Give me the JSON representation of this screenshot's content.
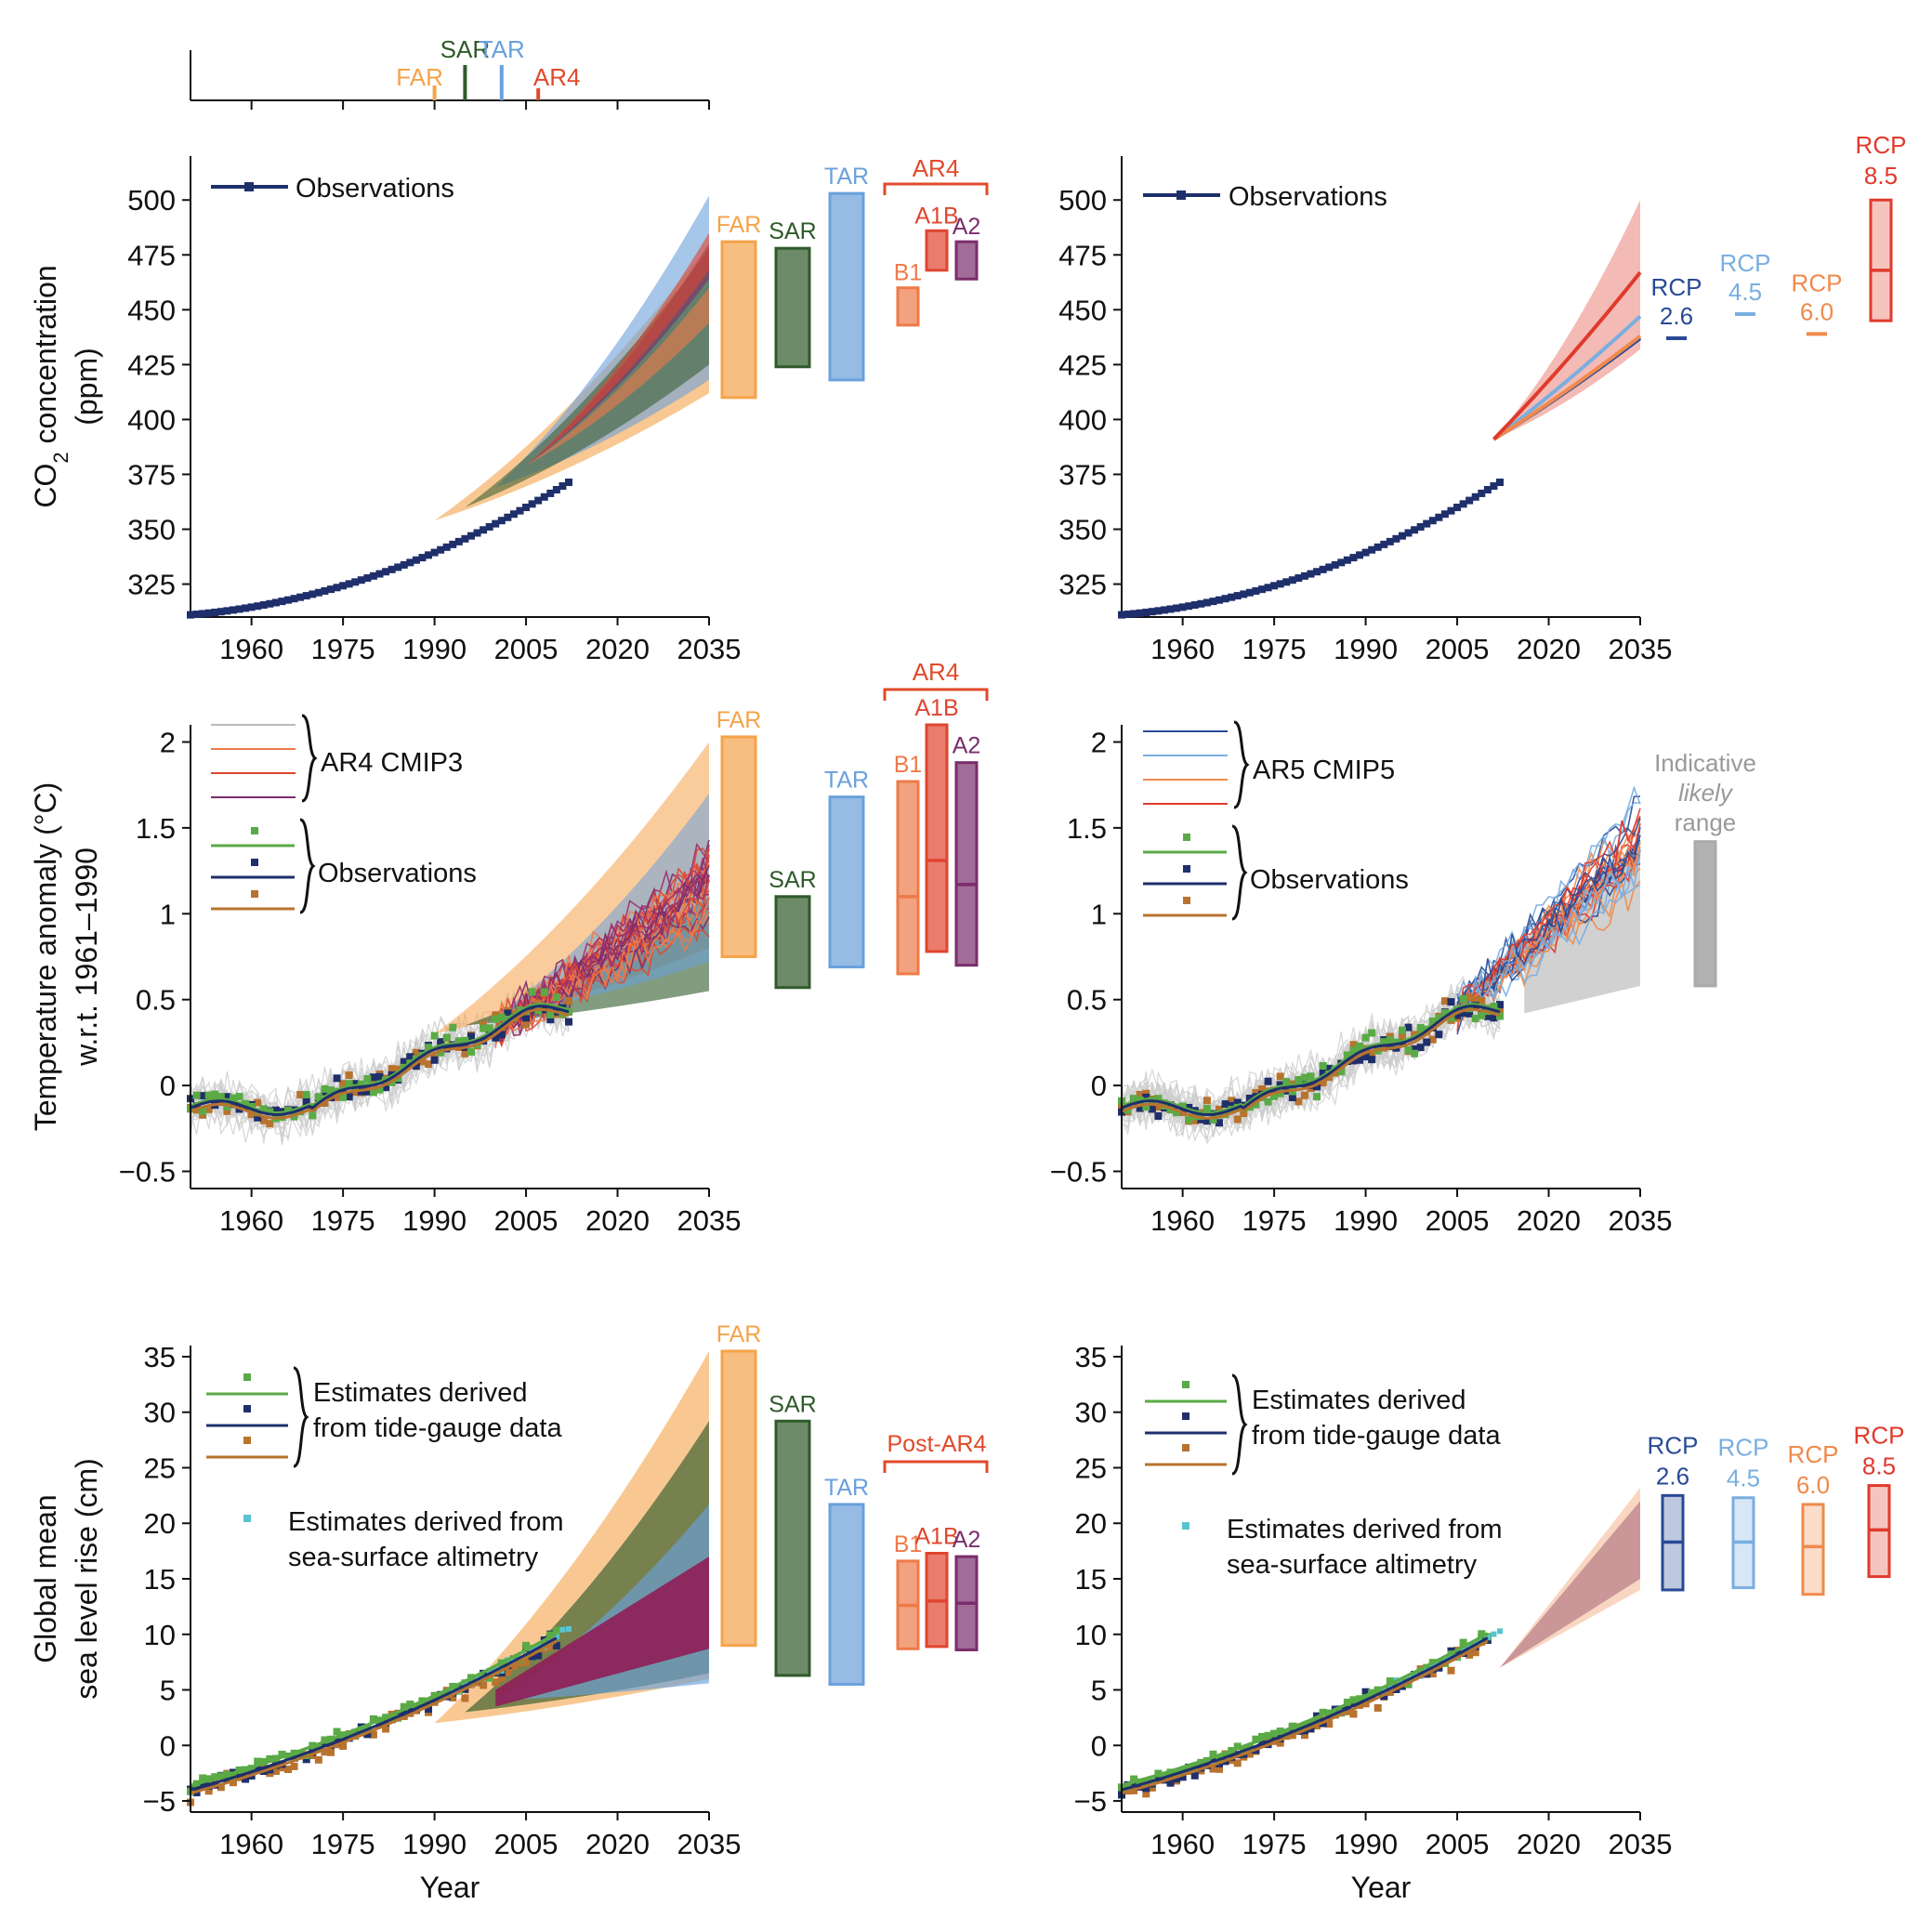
{
  "colors": {
    "obs_navy": "#1f2f6b",
    "obs_green": "#5aaa46",
    "obs_brown": "#b8732e",
    "altimetry": "#58c4d0",
    "FAR": "#f5a34a",
    "SAR": "#2f5a2a",
    "TAR": "#6aa0dc",
    "AR4": "#e04a2a",
    "B1": "#ee7a48",
    "A1B": "#e0452f",
    "A2": "#7a2d6c",
    "RCP26": "#284a96",
    "RCP45": "#79aee0",
    "RCP60": "#ef8a4c",
    "RCP85": "#e03a2c",
    "cmip_grey": "#cccccc",
    "likely_grey": "#aaaaaa"
  },
  "timeline": {
    "labels": [
      "FAR",
      "SAR",
      "TAR",
      "AR4"
    ],
    "years": [
      1990,
      1995,
      2001,
      2007
    ]
  },
  "left_brackets": {
    "co2": "AR4",
    "temp": "AR4",
    "sea": "Post-AR4"
  },
  "legend": {
    "observations": "Observations",
    "ar4_cmip3": "AR4 CMIP3",
    "ar5_cmip5": "AR5 CMIP5",
    "tide_line1": "Estimates derived",
    "tide_line2": "from tide-gauge data",
    "alt_line1": "Estimates derived from",
    "alt_line2": "sea-surface altimetry"
  },
  "indicative": {
    "line1": "Indicative",
    "line2": "likely",
    "line3": "range"
  },
  "chart_data": [
    {
      "id": "co2_ar",
      "type": "line",
      "ylabel_line1": "CO",
      "ylabel_sub": "2",
      "ylabel_rest": " concentration",
      "ylabel_line2": "(ppm)",
      "xlabel": "",
      "xlim": [
        1950,
        2035
      ],
      "ylim": [
        310,
        520
      ],
      "xticks": [
        1960,
        1975,
        1990,
        2005,
        2020,
        2035
      ],
      "yticks": [
        325,
        350,
        375,
        400,
        425,
        450,
        475,
        500
      ],
      "observations": {
        "start": 1950,
        "end": 2012
      },
      "projection_fans": [
        {
          "name": "FAR",
          "start_year": 1990,
          "start_value": 354,
          "end_low": 412,
          "end_high": 480
        },
        {
          "name": "TAR",
          "start_year": 2000,
          "start_value": 369,
          "end_low": 418,
          "end_high": 502
        },
        {
          "name": "SAR",
          "start_year": 1995,
          "start_value": 360,
          "end_low": 425,
          "end_high": 478
        },
        {
          "name": "A2",
          "start_year": 2005,
          "start_value": 379,
          "end_low": 464,
          "end_high": 480
        },
        {
          "name": "A1B",
          "start_year": 2005,
          "start_value": 379,
          "end_low": 468,
          "end_high": 485
        },
        {
          "name": "B1",
          "start_year": 2005,
          "start_value": 379,
          "end_low": 444,
          "end_high": 460
        }
      ],
      "range_bars": [
        {
          "name": "FAR",
          "low": 410,
          "high": 481
        },
        {
          "name": "SAR",
          "low": 424,
          "high": 478
        },
        {
          "name": "TAR",
          "low": 418,
          "high": 503
        },
        {
          "name": "B1",
          "low": 443,
          "high": 460
        },
        {
          "name": "A1B",
          "low": 468,
          "high": 486
        },
        {
          "name": "A2",
          "low": 464,
          "high": 481
        }
      ]
    },
    {
      "id": "co2_rcp",
      "type": "line",
      "xlim": [
        1950,
        2035
      ],
      "ylim": [
        310,
        520
      ],
      "xticks": [
        1960,
        1975,
        1990,
        2005,
        2020,
        2035
      ],
      "yticks": [
        325,
        350,
        375,
        400,
        425,
        450,
        475,
        500
      ],
      "observations": {
        "start": 1950,
        "end": 2012
      },
      "rcp_lines": [
        {
          "name": "RCP 2.6",
          "end": 437
        },
        {
          "name": "RCP 4.5",
          "end": 447
        },
        {
          "name": "RCP 6.0",
          "end": 438
        },
        {
          "name": "RCP 8.5",
          "end": 467
        }
      ],
      "range_bars": [
        {
          "label1": "RCP",
          "label2": "2.6",
          "mid": 437
        },
        {
          "label1": "RCP",
          "label2": "4.5",
          "mid": 448
        },
        {
          "label1": "RCP",
          "label2": "6.0",
          "mid": 439
        },
        {
          "label1": "RCP",
          "label2": "8.5",
          "low": 445,
          "high": 500,
          "mid": 468
        }
      ]
    },
    {
      "id": "temp_ar",
      "type": "line",
      "ylabel_line1": "Temperature anomaly (°C)",
      "ylabel_line2": "w.r.t. 1961–1990",
      "xlim": [
        1950,
        2035
      ],
      "ylim": [
        -0.6,
        2.1
      ],
      "xticks": [
        1960,
        1975,
        1990,
        2005,
        2020,
        2035
      ],
      "yticks": [
        -0.5,
        0,
        0.5,
        1,
        1.5,
        2
      ],
      "ytick_labels": [
        "−0.5",
        "0",
        "0.5",
        "1",
        "1.5",
        "2"
      ],
      "range_bars": [
        {
          "name": "FAR",
          "low": 0.75,
          "high": 2.03
        },
        {
          "name": "SAR",
          "low": 0.57,
          "high": 1.1
        },
        {
          "name": "TAR",
          "low": 0.69,
          "high": 1.68
        },
        {
          "name": "B1",
          "low": 0.65,
          "high": 1.77,
          "mid": 1.1
        },
        {
          "name": "A1B",
          "low": 0.78,
          "high": 2.1,
          "mid": 1.31
        },
        {
          "name": "A2",
          "low": 0.7,
          "high": 1.88,
          "mid": 1.17
        }
      ]
    },
    {
      "id": "temp_rcp",
      "type": "line",
      "xlim": [
        1950,
        2035
      ],
      "ylim": [
        -0.6,
        2.1
      ],
      "xticks": [
        1960,
        1975,
        1990,
        2005,
        2020,
        2035
      ],
      "yticks": [
        -0.5,
        0,
        0.5,
        1,
        1.5,
        2
      ],
      "ytick_labels": [
        "−0.5",
        "0",
        "0.5",
        "1",
        "1.5",
        "2"
      ],
      "range_bars": [
        {
          "name": "Indicative likely range",
          "low": 0.58,
          "high": 1.42
        }
      ]
    },
    {
      "id": "sea_ar",
      "type": "line",
      "ylabel_line1": "Global mean",
      "ylabel_line2": "sea level rise (cm)",
      "xlabel": "Year",
      "xlim": [
        1950,
        2035
      ],
      "ylim": [
        -6,
        36
      ],
      "xticks": [
        1960,
        1975,
        1990,
        2005,
        2020,
        2035
      ],
      "yticks": [
        -5,
        0,
        5,
        10,
        15,
        20,
        25,
        30,
        35
      ],
      "ytick_labels": [
        "−5",
        "0",
        "5",
        "10",
        "15",
        "20",
        "25",
        "30",
        "35"
      ],
      "range_bars": [
        {
          "name": "FAR",
          "low": 9,
          "high": 35.5
        },
        {
          "name": "SAR",
          "low": 6.3,
          "high": 29.2
        },
        {
          "name": "TAR",
          "low": 5.5,
          "high": 21.7
        },
        {
          "name": "B1",
          "low": 8.7,
          "high": 16.6,
          "mid": 12.6
        },
        {
          "name": "A1B",
          "low": 8.9,
          "high": 17.3,
          "mid": 13
        },
        {
          "name": "A2",
          "low": 8.6,
          "high": 17,
          "mid": 12.8
        }
      ]
    },
    {
      "id": "sea_rcp",
      "type": "line",
      "xlabel": "Year",
      "xlim": [
        1950,
        2035
      ],
      "ylim": [
        -6,
        36
      ],
      "xticks": [
        1960,
        1975,
        1990,
        2005,
        2020,
        2035
      ],
      "yticks": [
        -5,
        0,
        5,
        10,
        15,
        20,
        25,
        30,
        35
      ],
      "ytick_labels": [
        "−5",
        "0",
        "5",
        "10",
        "15",
        "20",
        "25",
        "30",
        "35"
      ],
      "range_bars": [
        {
          "label1": "RCP",
          "label2": "2.6",
          "low": 14,
          "high": 22.5,
          "mid": 18.3
        },
        {
          "label1": "RCP",
          "label2": "4.5",
          "low": 14.2,
          "high": 22.3,
          "mid": 18.3
        },
        {
          "label1": "RCP",
          "label2": "6.0",
          "low": 13.6,
          "high": 21.7,
          "mid": 17.9
        },
        {
          "label1": "RCP",
          "label2": "8.5",
          "low": 15.2,
          "high": 23.4,
          "mid": 19.4
        }
      ]
    }
  ]
}
